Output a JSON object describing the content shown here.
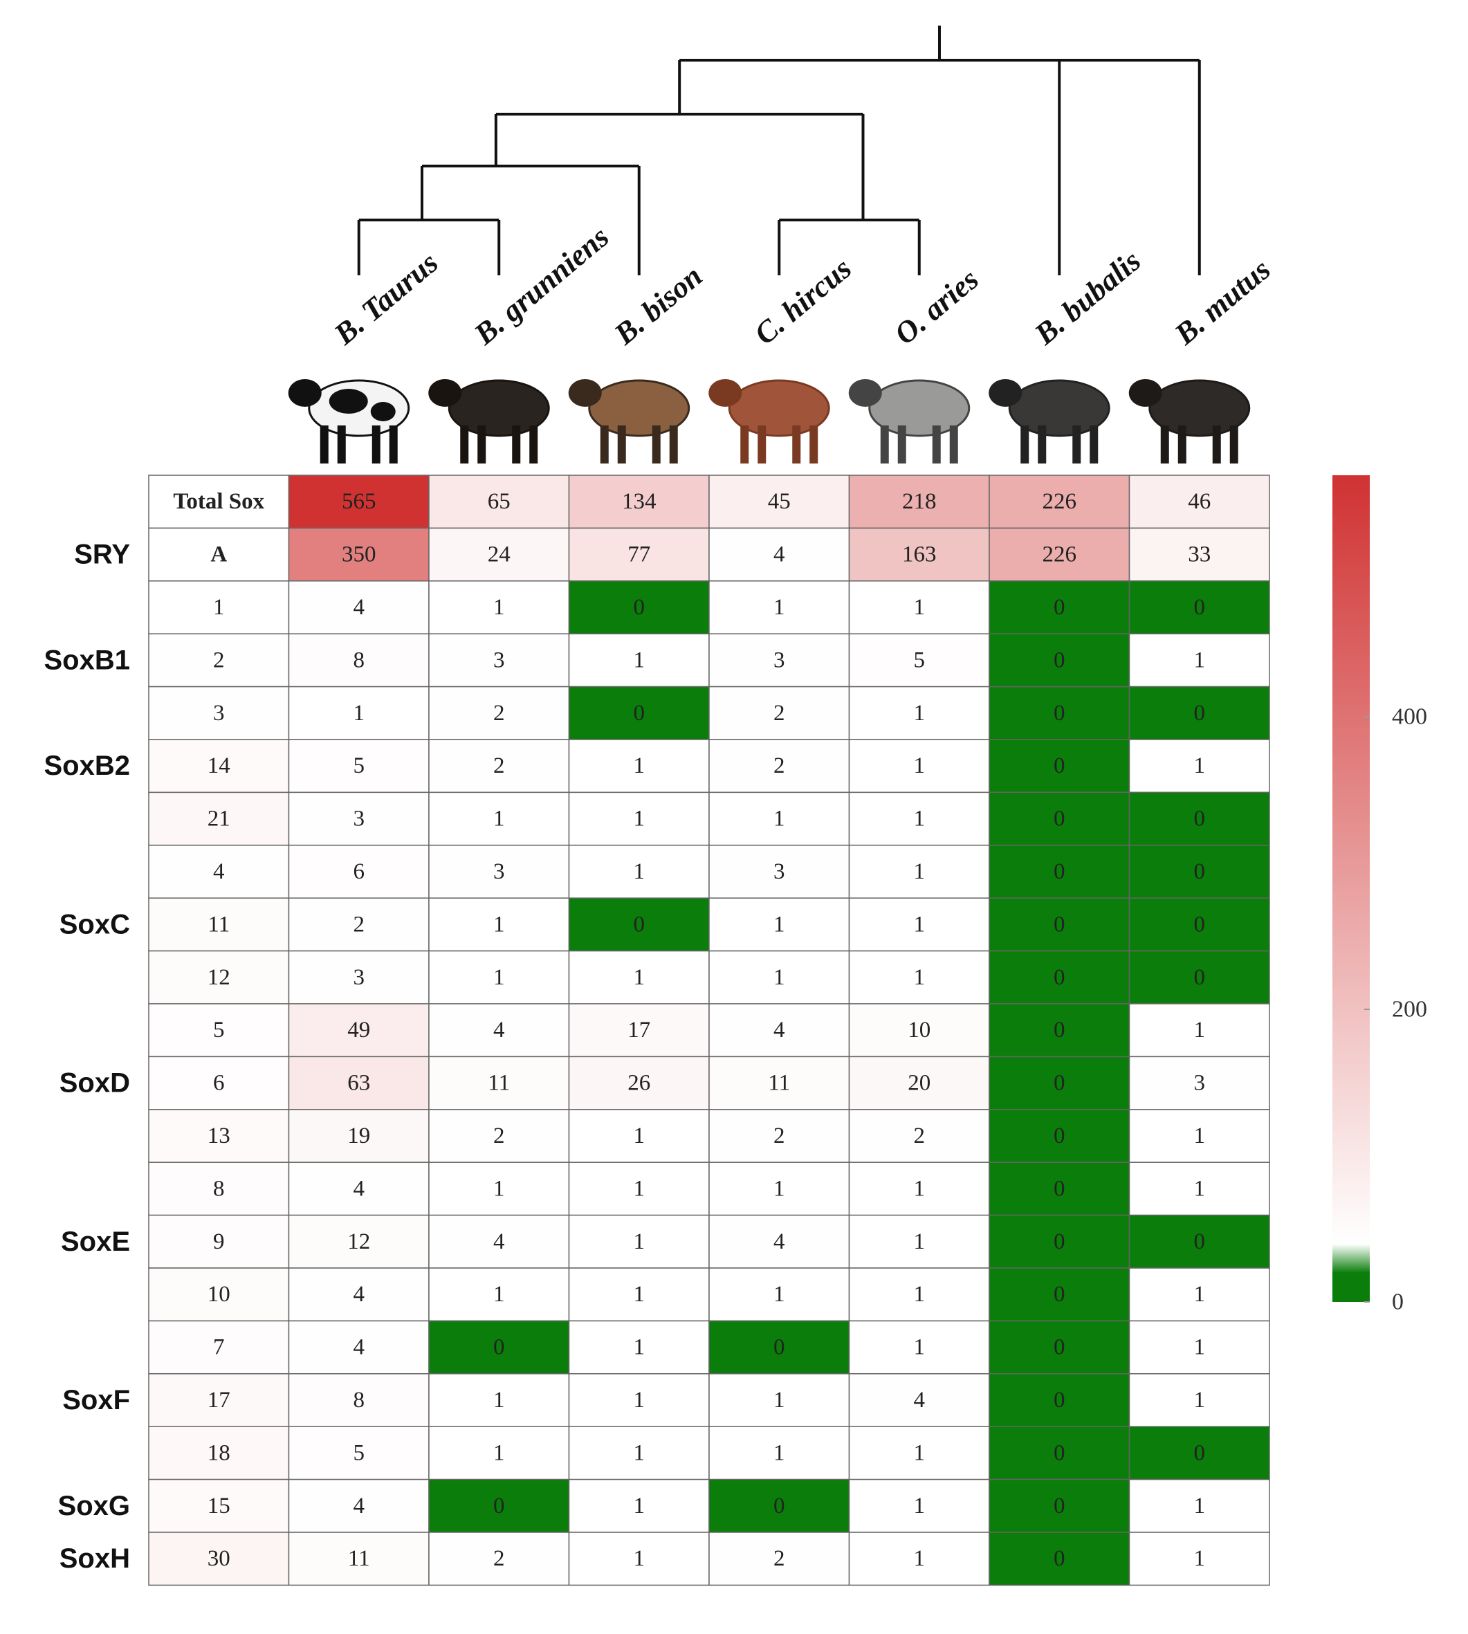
{
  "chart_data": {
    "type": "heatmap",
    "columns": [
      "B. Taurus",
      "B. grunniens",
      "B. bison",
      "C. hircus",
      "O. aries",
      "B. bubalis",
      "B. mutus"
    ],
    "rows": [
      {
        "label": "Total Sox",
        "values": [
          565,
          65,
          134,
          45,
          218,
          226,
          46
        ]
      },
      {
        "group": "SRY",
        "label": "A",
        "values": [
          350,
          24,
          77,
          4,
          163,
          226,
          33
        ]
      },
      {
        "label": 1,
        "values": [
          4,
          1,
          0,
          1,
          1,
          0,
          0
        ]
      },
      {
        "group": "SoxB1",
        "label": 2,
        "values": [
          8,
          3,
          1,
          3,
          5,
          0,
          1
        ]
      },
      {
        "label": 3,
        "values": [
          1,
          2,
          0,
          2,
          1,
          0,
          0
        ]
      },
      {
        "group": "SoxB2",
        "label": 14,
        "values": [
          5,
          2,
          1,
          2,
          1,
          0,
          1
        ]
      },
      {
        "label": 21,
        "values": [
          3,
          1,
          1,
          1,
          1,
          0,
          0
        ]
      },
      {
        "label": 4,
        "values": [
          6,
          3,
          1,
          3,
          1,
          0,
          0
        ]
      },
      {
        "group": "SoxC",
        "label": 11,
        "values": [
          2,
          1,
          0,
          1,
          1,
          0,
          0
        ]
      },
      {
        "label": 12,
        "values": [
          3,
          1,
          1,
          1,
          1,
          0,
          0
        ]
      },
      {
        "label": 5,
        "values": [
          49,
          4,
          17,
          4,
          10,
          0,
          1
        ]
      },
      {
        "group": "SoxD",
        "label": 6,
        "values": [
          63,
          11,
          26,
          11,
          20,
          0,
          3
        ]
      },
      {
        "label": 13,
        "values": [
          19,
          2,
          1,
          2,
          2,
          0,
          1
        ]
      },
      {
        "label": 8,
        "values": [
          4,
          1,
          1,
          1,
          1,
          0,
          1
        ]
      },
      {
        "group": "SoxE",
        "label": 9,
        "values": [
          12,
          4,
          1,
          4,
          1,
          0,
          0
        ]
      },
      {
        "label": 10,
        "values": [
          4,
          1,
          1,
          1,
          1,
          0,
          1
        ]
      },
      {
        "label": 7,
        "values": [
          4,
          0,
          1,
          0,
          1,
          0,
          1
        ]
      },
      {
        "group": "SoxF",
        "label": 17,
        "values": [
          8,
          1,
          1,
          1,
          4,
          0,
          1
        ]
      },
      {
        "label": 18,
        "values": [
          5,
          1,
          1,
          1,
          1,
          0,
          0
        ]
      },
      {
        "group": "SoxG",
        "label": 15,
        "values": [
          4,
          0,
          1,
          0,
          1,
          0,
          1
        ]
      },
      {
        "group": "SoxH",
        "label": 30,
        "values": [
          11,
          2,
          1,
          2,
          1,
          0,
          1
        ]
      }
    ],
    "zlim": [
      0,
      565
    ],
    "zticks": [
      0,
      200,
      400
    ],
    "zero_color": "#0a7d0a",
    "low_color": "#ffffff",
    "high_color": "#d03232"
  }
}
